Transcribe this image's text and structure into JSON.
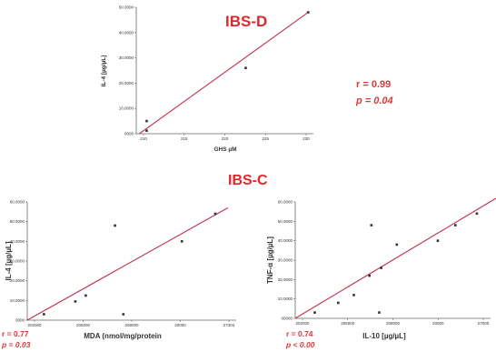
{
  "headings": {
    "top": "IBS-D",
    "bottom": "IBS-C"
  },
  "stats": {
    "top": {
      "r": "r = 0.99",
      "p": "p = 0.04"
    },
    "bottom_left": {
      "r": "r = 0.77",
      "p": "p = 0.03"
    },
    "bottom_right": {
      "r": "r = 0.74",
      "p": "p < 0.00"
    }
  },
  "chart_data": [
    {
      "type": "scatter",
      "xlabel": "GHS µM",
      "ylabel": "IL-4 [µg/µL]",
      "xlim": [
        209,
        226
      ],
      "ylim": [
        0,
        50000
      ],
      "x_ticks": [
        "210",
        "215",
        "220",
        "225",
        "230"
      ],
      "y_ticks": [
        "0000",
        "10.0000",
        "20.0000",
        "30.0000",
        "40.0000",
        "50.0000"
      ],
      "points": [
        [
          210,
          5000
        ],
        [
          210,
          1200
        ],
        [
          219.5,
          26000
        ],
        [
          225.5,
          48000
        ]
      ],
      "fit": [
        [
          209.3,
          0
        ],
        [
          225.5,
          48000
        ]
      ],
      "colors": {
        "fit": "#c0324f",
        "points": "#333333"
      }
    },
    {
      "type": "scatter",
      "xlabel": "MDA (nmol/mg/protein",
      "ylabel": "IL-4 [µg/µL]",
      "xlim": [
        0,
        10
      ],
      "ylim": [
        0,
        60000
      ],
      "x_ticks": [
        "202000",
        "205000",
        "208000",
        "20000",
        "27304"
      ],
      "y_ticks": [
        "0000",
        "10.0000",
        "20.0000",
        "30.0000",
        "40.0000",
        "50.0000",
        "60.0000"
      ],
      "points": [
        [
          0.8,
          3000
        ],
        [
          2.3,
          9500
        ],
        [
          2.8,
          12500
        ],
        [
          4.2,
          48000
        ],
        [
          4.6,
          3000
        ],
        [
          7.4,
          40000
        ],
        [
          9.0,
          54000
        ]
      ],
      "fit": [
        [
          0,
          0
        ],
        [
          9.6,
          57000
        ]
      ],
      "colors": {
        "fit": "#c0324f",
        "points": "#333333"
      }
    },
    {
      "type": "scatter",
      "xlabel": "IL-10 [µg/µL]",
      "ylabel": "TNF-α [µg/µL]",
      "xlim": [
        0,
        10
      ],
      "ylim": [
        0,
        60000
      ],
      "x_ticks": [
        "202000",
        "205000",
        "208000",
        "20000",
        "27000"
      ],
      "y_ticks": [
        "00000",
        "10.0000",
        "20.0000",
        "30.0000",
        "40.0000",
        "50.0000",
        "60.0000"
      ],
      "points": [
        [
          1.0,
          3000
        ],
        [
          2.2,
          8000
        ],
        [
          3.0,
          12000
        ],
        [
          3.9,
          48000
        ],
        [
          3.8,
          22000
        ],
        [
          4.3,
          3000
        ],
        [
          4.4,
          26000
        ],
        [
          5.2,
          38000
        ],
        [
          7.3,
          40000
        ],
        [
          8.2,
          48000
        ],
        [
          9.3,
          54000
        ]
      ],
      "fit": [
        [
          0,
          0
        ],
        [
          10.3,
          62000
        ]
      ],
      "colors": {
        "fit": "#c0324f",
        "points": "#333333"
      }
    }
  ]
}
